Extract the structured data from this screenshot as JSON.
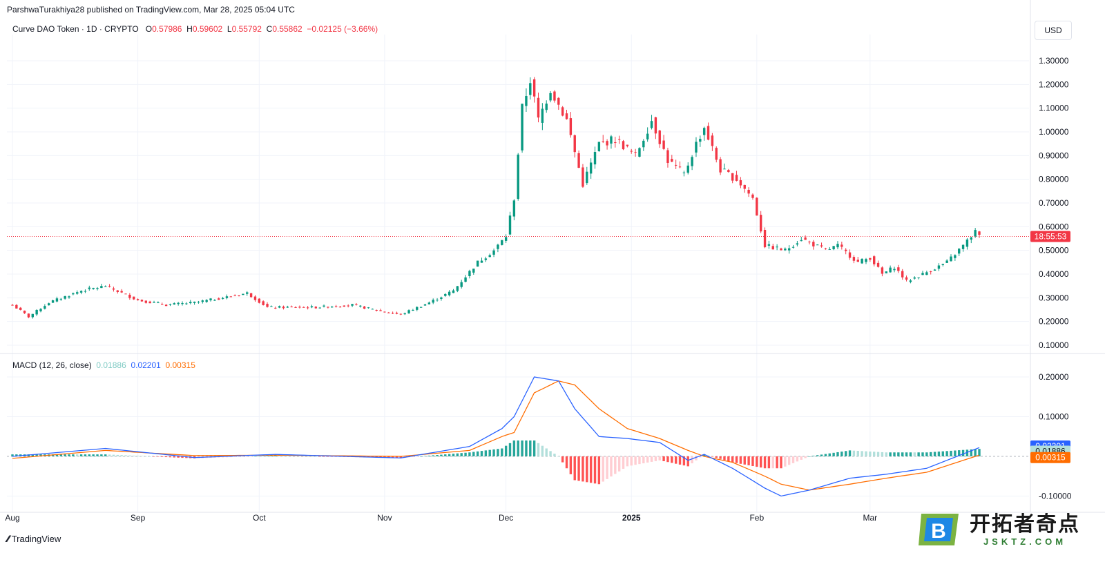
{
  "header": {
    "publisher": "ParshwaTurakhiya28 published on TradingView.com, Mar 28, 2025 05:04 UTC"
  },
  "symbol": {
    "name": "Curve DAO Token · 1D · CRYPTO",
    "o_label": "O",
    "o_value": "0.57986",
    "h_label": "H",
    "h_value": "0.59602",
    "l_label": "L",
    "l_value": "0.55792",
    "c_label": "C",
    "c_value": "0.55862",
    "change": "−0.02125 (−3.66%)"
  },
  "currency": "USD",
  "macd_legend": {
    "label": "MACD (12, 26, close)",
    "hist_value": "0.01886",
    "macd_value": "0.02201",
    "signal_value": "0.00315"
  },
  "footer": {
    "brand": "TradingView"
  },
  "watermark": {
    "cn": "开拓者奇点",
    "url": "JSKTZ.COM",
    "letter": "B"
  },
  "colors": {
    "up": "#089981",
    "down": "#f23645",
    "macd": "#2962ff",
    "signal": "#ff6d00",
    "hist_up_strong": "#26a69a",
    "hist_up_weak": "#b2dfdb",
    "hist_down_strong": "#ff5252",
    "hist_down_weak": "#ffcdd2"
  },
  "chart_data": [
    {
      "type": "candlestick",
      "title": "Curve DAO Token · 1D · CRYPTO",
      "y_axis_labels": [
        "1.30000",
        "1.20000",
        "1.10000",
        "1.00000",
        "0.90000",
        "0.80000",
        "0.70000",
        "0.60000",
        "0.50000",
        "0.40000",
        "0.30000",
        "0.20000",
        "0.10000"
      ],
      "ylim": [
        0.07,
        1.36
      ],
      "x_axis_labels": [
        "Aug",
        "Sep",
        "Oct",
        "Nov",
        "Dec",
        "2025",
        "Feb",
        "Mar"
      ],
      "price_line": 0.55862,
      "countdown_label": "18:55:53",
      "series": [
        {
          "name": "Curve DAO Token",
          "description": "daily OHLC Aug 2024 – Mar 2025",
          "anchors": [
            [
              "2024-08-01",
              0.27
            ],
            [
              "2024-08-05",
              0.22
            ],
            [
              "2024-08-10",
              0.28
            ],
            [
              "2024-08-18",
              0.33
            ],
            [
              "2024-08-24",
              0.35
            ],
            [
              "2024-09-01",
              0.29
            ],
            [
              "2024-09-08",
              0.27
            ],
            [
              "2024-09-15",
              0.28
            ],
            [
              "2024-09-22",
              0.3
            ],
            [
              "2024-09-28",
              0.32
            ],
            [
              "2024-10-03",
              0.26
            ],
            [
              "2024-10-15",
              0.26
            ],
            [
              "2024-10-24",
              0.27
            ],
            [
              "2024-11-01",
              0.24
            ],
            [
              "2024-11-05",
              0.23
            ],
            [
              "2024-11-12",
              0.28
            ],
            [
              "2024-11-18",
              0.33
            ],
            [
              "2024-11-24",
              0.45
            ],
            [
              "2024-11-28",
              0.5
            ],
            [
              "2024-12-01",
              0.56
            ],
            [
              "2024-12-03",
              0.72
            ],
            [
              "2024-12-05",
              1.1
            ],
            [
              "2024-12-07",
              1.22
            ],
            [
              "2024-12-09",
              1.05
            ],
            [
              "2024-12-12",
              1.18
            ],
            [
              "2024-12-16",
              1.05
            ],
            [
              "2024-12-20",
              0.78
            ],
            [
              "2024-12-24",
              0.95
            ],
            [
              "2024-12-28",
              0.97
            ],
            [
              "2025-01-02",
              0.9
            ],
            [
              "2025-01-06",
              1.05
            ],
            [
              "2025-01-10",
              0.88
            ],
            [
              "2025-01-14",
              0.82
            ],
            [
              "2025-01-17",
              0.95
            ],
            [
              "2025-01-19",
              1.02
            ],
            [
              "2025-01-23",
              0.84
            ],
            [
              "2025-01-27",
              0.8
            ],
            [
              "2025-01-31",
              0.72
            ],
            [
              "2025-02-03",
              0.52
            ],
            [
              "2025-02-08",
              0.5
            ],
            [
              "2025-02-12",
              0.55
            ],
            [
              "2025-02-18",
              0.5
            ],
            [
              "2025-02-21",
              0.52
            ],
            [
              "2025-02-26",
              0.45
            ],
            [
              "2025-03-01",
              0.47
            ],
            [
              "2025-03-04",
              0.4
            ],
            [
              "2025-03-07",
              0.43
            ],
            [
              "2025-03-10",
              0.37
            ],
            [
              "2025-03-14",
              0.4
            ],
            [
              "2025-03-20",
              0.45
            ],
            [
              "2025-03-24",
              0.52
            ],
            [
              "2025-03-27",
              0.58
            ],
            [
              "2025-03-28",
              0.55862
            ]
          ]
        }
      ]
    },
    {
      "type": "line",
      "title": "MACD (12, 26, close)",
      "y_axis_labels": [
        "0.20000",
        "0.10000",
        "-0.10000"
      ],
      "ylim": [
        -0.11,
        0.23
      ],
      "last_values": {
        "histogram": 0.01886,
        "macd": 0.02201,
        "signal": 0.00315
      },
      "series": [
        {
          "name": "MACD",
          "anchors": [
            [
              "2024-08-01",
              0.0
            ],
            [
              "2024-08-24",
              0.02
            ],
            [
              "2024-09-15",
              -0.003
            ],
            [
              "2024-10-05",
              0.005
            ],
            [
              "2024-11-05",
              -0.004
            ],
            [
              "2024-11-22",
              0.025
            ],
            [
              "2024-11-30",
              0.07
            ],
            [
              "2024-12-03",
              0.1
            ],
            [
              "2024-12-08",
              0.2
            ],
            [
              "2024-12-14",
              0.19
            ],
            [
              "2024-12-18",
              0.12
            ],
            [
              "2024-12-24",
              0.05
            ],
            [
              "2024-12-31",
              0.045
            ],
            [
              "2025-01-08",
              0.035
            ],
            [
              "2025-01-15",
              -0.01
            ],
            [
              "2025-01-19",
              0.005
            ],
            [
              "2025-01-26",
              -0.03
            ],
            [
              "2025-02-03",
              -0.08
            ],
            [
              "2025-02-07",
              -0.1
            ],
            [
              "2025-02-14",
              -0.085
            ],
            [
              "2025-02-24",
              -0.055
            ],
            [
              "2025-03-05",
              -0.045
            ],
            [
              "2025-03-15",
              -0.03
            ],
            [
              "2025-03-28",
              0.02201
            ]
          ]
        },
        {
          "name": "Signal",
          "anchors": [
            [
              "2024-08-01",
              -0.005
            ],
            [
              "2024-08-24",
              0.015
            ],
            [
              "2024-09-15",
              0.002
            ],
            [
              "2024-10-05",
              0.003
            ],
            [
              "2024-11-05",
              0.0
            ],
            [
              "2024-11-22",
              0.015
            ],
            [
              "2024-11-30",
              0.05
            ],
            [
              "2024-12-03",
              0.06
            ],
            [
              "2024-12-08",
              0.16
            ],
            [
              "2024-12-14",
              0.19
            ],
            [
              "2024-12-18",
              0.18
            ],
            [
              "2024-12-24",
              0.12
            ],
            [
              "2024-12-31",
              0.07
            ],
            [
              "2025-01-08",
              0.045
            ],
            [
              "2025-01-15",
              0.015
            ],
            [
              "2025-01-19",
              0.0
            ],
            [
              "2025-01-26",
              -0.015
            ],
            [
              "2025-02-03",
              -0.05
            ],
            [
              "2025-02-07",
              -0.07
            ],
            [
              "2025-02-14",
              -0.085
            ],
            [
              "2025-02-24",
              -0.07
            ],
            [
              "2025-03-05",
              -0.055
            ],
            [
              "2025-03-15",
              -0.04
            ],
            [
              "2025-03-28",
              0.00315
            ]
          ]
        }
      ]
    }
  ]
}
